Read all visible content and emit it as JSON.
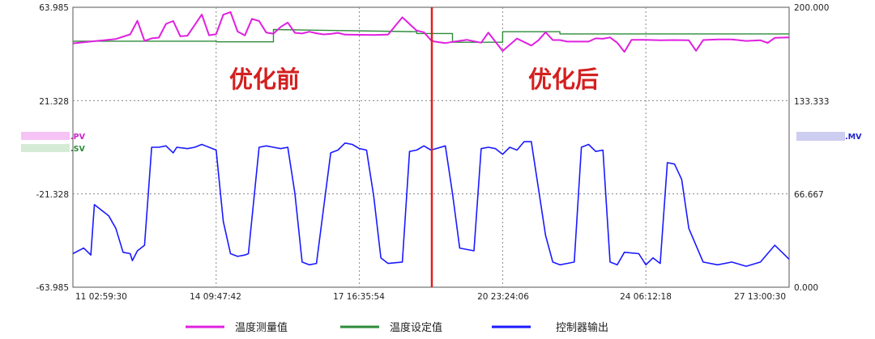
{
  "chart_data": {
    "type": "line",
    "y_left_ticks": [
      "63.985",
      "21.328",
      "-21.328",
      "-63.985"
    ],
    "y_left_range": [
      -63.985,
      63.985
    ],
    "y_right_ticks": [
      "200.000",
      "133.333",
      "66.667",
      "0.000"
    ],
    "y_right_range": [
      0,
      200
    ],
    "x_ticks": [
      "11 02:59:30",
      "14 09:47:42",
      "17 16:35:54",
      "20 23:24:06",
      "24 06:12:18",
      "27 13:00:30"
    ],
    "grid": true,
    "annotations": {
      "before": "优化前",
      "after": "优化后"
    },
    "left_tag_pv": ".PV",
    "left_tag_sv": ".SV",
    "right_tag_mv": ".MV",
    "legend_position": "bottom",
    "colors": {
      "pv": "#e020e0",
      "sv": "#2e8b3a",
      "mv": "#1a1aff",
      "divider": "#e02020",
      "grid": "#888888"
    },
    "series": [
      {
        "name": "温度测量值",
        "axis": "left",
        "x": [
          0,
          0.03,
          0.06,
          0.08,
          0.09,
          0.1,
          0.11,
          0.12,
          0.13,
          0.14,
          0.15,
          0.16,
          0.17,
          0.18,
          0.19,
          0.2,
          0.21,
          0.22,
          0.23,
          0.24,
          0.25,
          0.26,
          0.27,
          0.28,
          0.29,
          0.3,
          0.31,
          0.32,
          0.33,
          0.34,
          0.35,
          0.36,
          0.37,
          0.38,
          0.4,
          0.42,
          0.44,
          0.46,
          0.48,
          0.49,
          0.5,
          0.505,
          0.52,
          0.53,
          0.55,
          0.57,
          0.58,
          0.59,
          0.6,
          0.62,
          0.64,
          0.65,
          0.66,
          0.67,
          0.68,
          0.69,
          0.7,
          0.72,
          0.73,
          0.74,
          0.75,
          0.76,
          0.77,
          0.78,
          0.8,
          0.82,
          0.84,
          0.86,
          0.87,
          0.88,
          0.9,
          0.92,
          0.94,
          0.96,
          0.97,
          0.98,
          1.0
        ],
        "y": [
          47.5,
          48.5,
          49.5,
          51.6,
          57.8,
          48.6,
          49.8,
          50.1,
          56.4,
          57.7,
          50.7,
          51.0,
          55.9,
          60.7,
          51.2,
          51.7,
          60.6,
          61.8,
          52.9,
          51.1,
          58.7,
          57.7,
          52.4,
          51.9,
          55.0,
          57.0,
          52.3,
          52.0,
          52.8,
          52.1,
          51.6,
          51.8,
          52.3,
          51.5,
          51.4,
          51.3,
          51.5,
          59.4,
          53.3,
          52.6,
          48.9,
          48.3,
          47.6,
          48.2,
          49.1,
          47.8,
          52.4,
          48.2,
          44.0,
          49.7,
          46.5,
          48.9,
          52.6,
          49.0,
          49.0,
          48.3,
          48.3,
          48.3,
          49.8,
          49.6,
          50.2,
          47.8,
          43.6,
          49.1,
          49.1,
          48.9,
          49.0,
          48.9,
          44.1,
          49.0,
          49.3,
          49.3,
          48.6,
          48.9,
          47.7,
          50.0,
          50.2
        ]
      },
      {
        "name": "温度设定值",
        "axis": "left",
        "x": [
          0,
          0.14,
          0.14,
          0.2,
          0.2,
          0.28,
          0.28,
          0.48,
          0.48,
          0.53,
          0.53,
          0.6,
          0.6,
          0.68,
          0.68,
          1.0
        ],
        "y": [
          48.5,
          48.5,
          48.5,
          48.5,
          48.2,
          48.2,
          53.8,
          52.8,
          52.0,
          52.0,
          48.0,
          48.0,
          52.8,
          52.8,
          51.8,
          51.8
        ]
      },
      {
        "name": "控制器输出",
        "axis": "right",
        "x": [
          0,
          0.015,
          0.025,
          0.03,
          0.05,
          0.06,
          0.07,
          0.08,
          0.083,
          0.09,
          0.1,
          0.11,
          0.12,
          0.13,
          0.14,
          0.145,
          0.16,
          0.17,
          0.18,
          0.19,
          0.2,
          0.21,
          0.22,
          0.23,
          0.24,
          0.245,
          0.26,
          0.27,
          0.28,
          0.29,
          0.3,
          0.31,
          0.32,
          0.33,
          0.34,
          0.36,
          0.37,
          0.38,
          0.39,
          0.4,
          0.41,
          0.42,
          0.43,
          0.44,
          0.46,
          0.47,
          0.48,
          0.49,
          0.5,
          0.52,
          0.53,
          0.54,
          0.56,
          0.57,
          0.58,
          0.59,
          0.6,
          0.61,
          0.62,
          0.63,
          0.64,
          0.66,
          0.67,
          0.68,
          0.69,
          0.7,
          0.71,
          0.72,
          0.73,
          0.74,
          0.75,
          0.76,
          0.77,
          0.79,
          0.8,
          0.81,
          0.82,
          0.83,
          0.84,
          0.85,
          0.86,
          0.88,
          0.9,
          0.92,
          0.94,
          0.96,
          0.98,
          1.0
        ],
        "y": [
          24,
          28,
          23,
          59,
          51,
          42,
          25,
          24,
          19,
          26,
          30,
          100,
          100,
          101,
          96,
          100,
          99,
          100,
          102,
          100,
          98,
          47,
          24,
          22,
          23,
          24,
          100,
          101,
          100,
          99,
          100,
          67,
          18,
          16,
          17,
          96,
          98,
          103,
          102,
          99,
          98,
          65,
          21,
          17,
          18,
          97,
          98,
          101,
          98,
          101,
          67,
          28,
          26,
          99,
          100,
          99,
          95,
          100,
          98,
          104,
          104,
          37,
          18,
          16,
          17,
          18,
          100,
          102,
          97,
          98,
          18,
          16,
          25,
          24,
          16,
          21,
          17,
          89,
          88,
          77,
          42,
          18,
          16,
          18,
          15,
          18,
          30,
          20
        ]
      }
    ]
  }
}
